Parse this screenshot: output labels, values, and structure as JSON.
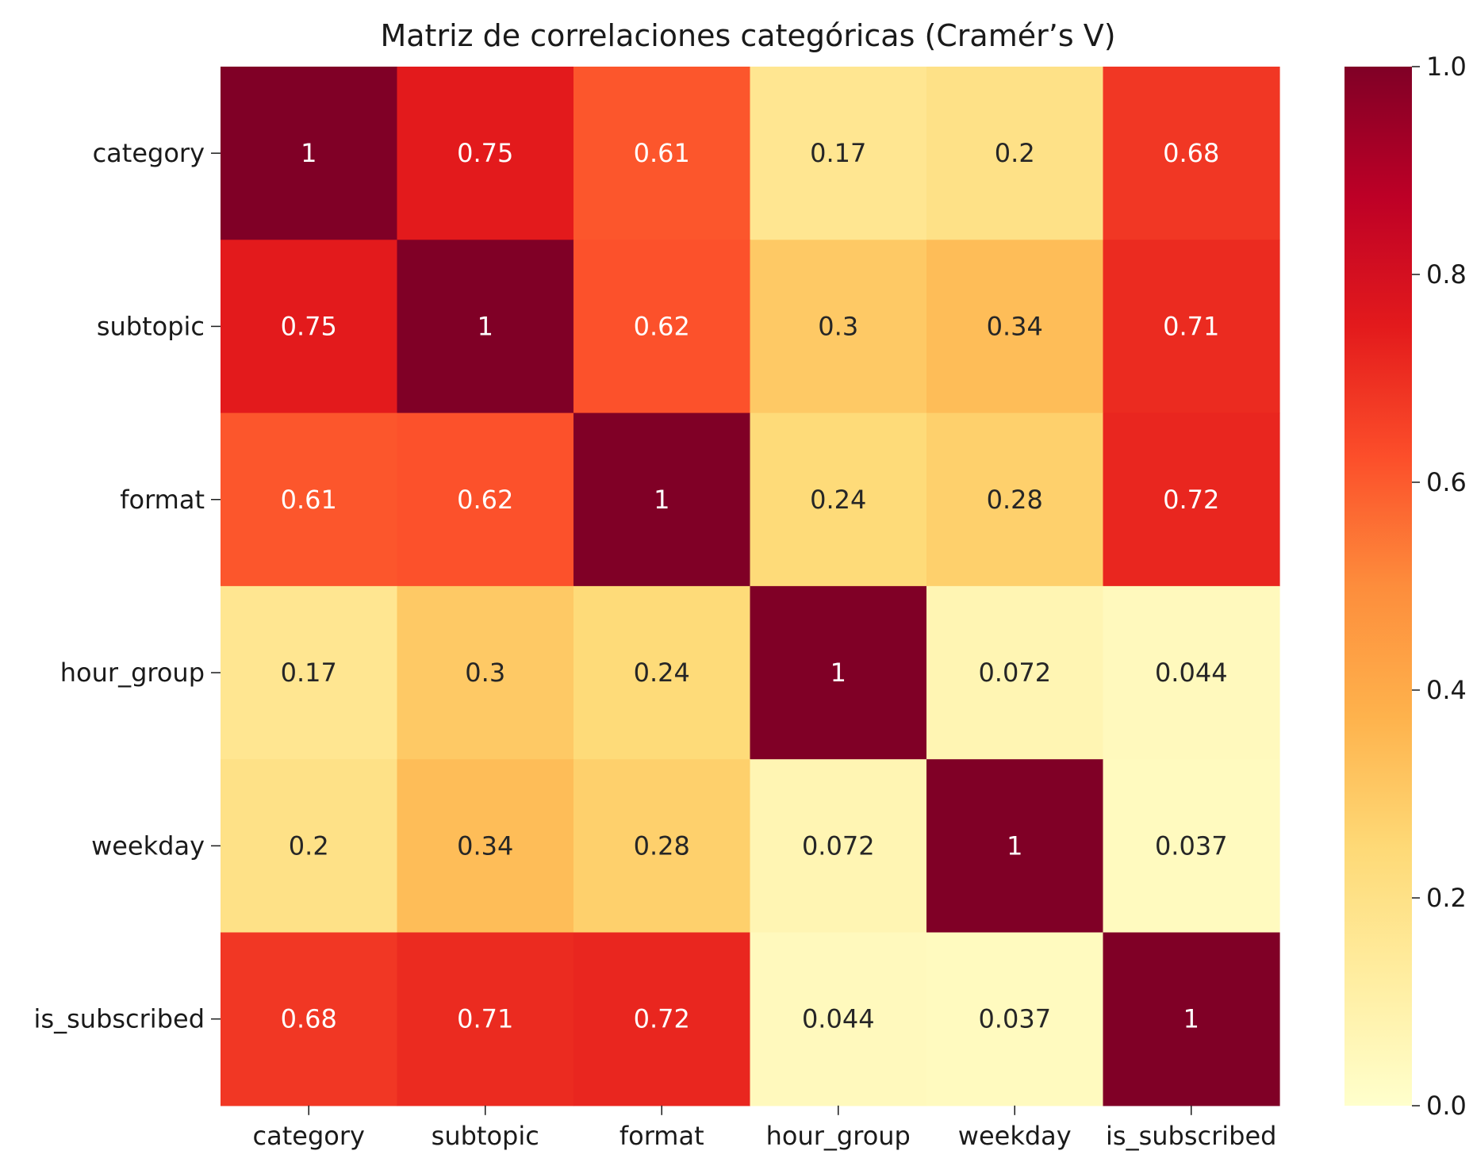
{
  "chart_data": {
    "type": "heatmap",
    "title": "Matriz de correlaciones categóricas (Cramér’s V)",
    "xlabel": "",
    "ylabel": "",
    "x_categories": [
      "category",
      "subtopic",
      "format",
      "hour_group",
      "weekday",
      "is_subscribed"
    ],
    "y_categories": [
      "category",
      "subtopic",
      "format",
      "hour_group",
      "weekday",
      "is_subscribed"
    ],
    "values": [
      [
        1,
        0.75,
        0.61,
        0.17,
        0.2,
        0.68
      ],
      [
        0.75,
        1,
        0.62,
        0.3,
        0.34,
        0.71
      ],
      [
        0.61,
        0.62,
        1,
        0.24,
        0.28,
        0.72
      ],
      [
        0.17,
        0.3,
        0.24,
        1,
        0.072,
        0.044
      ],
      [
        0.2,
        0.34,
        0.28,
        0.072,
        1,
        0.037
      ],
      [
        0.68,
        0.71,
        0.72,
        0.044,
        0.037,
        1
      ]
    ],
    "value_labels": [
      [
        "1",
        "0.75",
        "0.61",
        "0.17",
        "0.2",
        "0.68"
      ],
      [
        "0.75",
        "1",
        "0.62",
        "0.3",
        "0.34",
        "0.71"
      ],
      [
        "0.61",
        "0.62",
        "1",
        "0.24",
        "0.28",
        "0.72"
      ],
      [
        "0.17",
        "0.3",
        "0.24",
        "1",
        "0.072",
        "0.044"
      ],
      [
        "0.2",
        "0.34",
        "0.28",
        "0.072",
        "1",
        "0.037"
      ],
      [
        "0.68",
        "0.71",
        "0.72",
        "0.044",
        "0.037",
        "1"
      ]
    ],
    "colormap": "YlOrRd",
    "colormap_stops": [
      "#ffffcc",
      "#ffeda0",
      "#fed976",
      "#feb24c",
      "#fd8d3c",
      "#fc4e2a",
      "#e31a1c",
      "#bd0026",
      "#800026"
    ],
    "colorbar": {
      "range": [
        0.0,
        1.0
      ],
      "ticks": [
        0.0,
        0.2,
        0.4,
        0.6,
        0.8,
        1.0
      ],
      "tick_labels": [
        "0.0",
        "0.2",
        "0.4",
        "0.6",
        "0.8",
        "1.0"
      ]
    },
    "annotation_colors": {
      "dark_text": "#262626",
      "light_text": "#ffffff"
    },
    "grid": false
  }
}
